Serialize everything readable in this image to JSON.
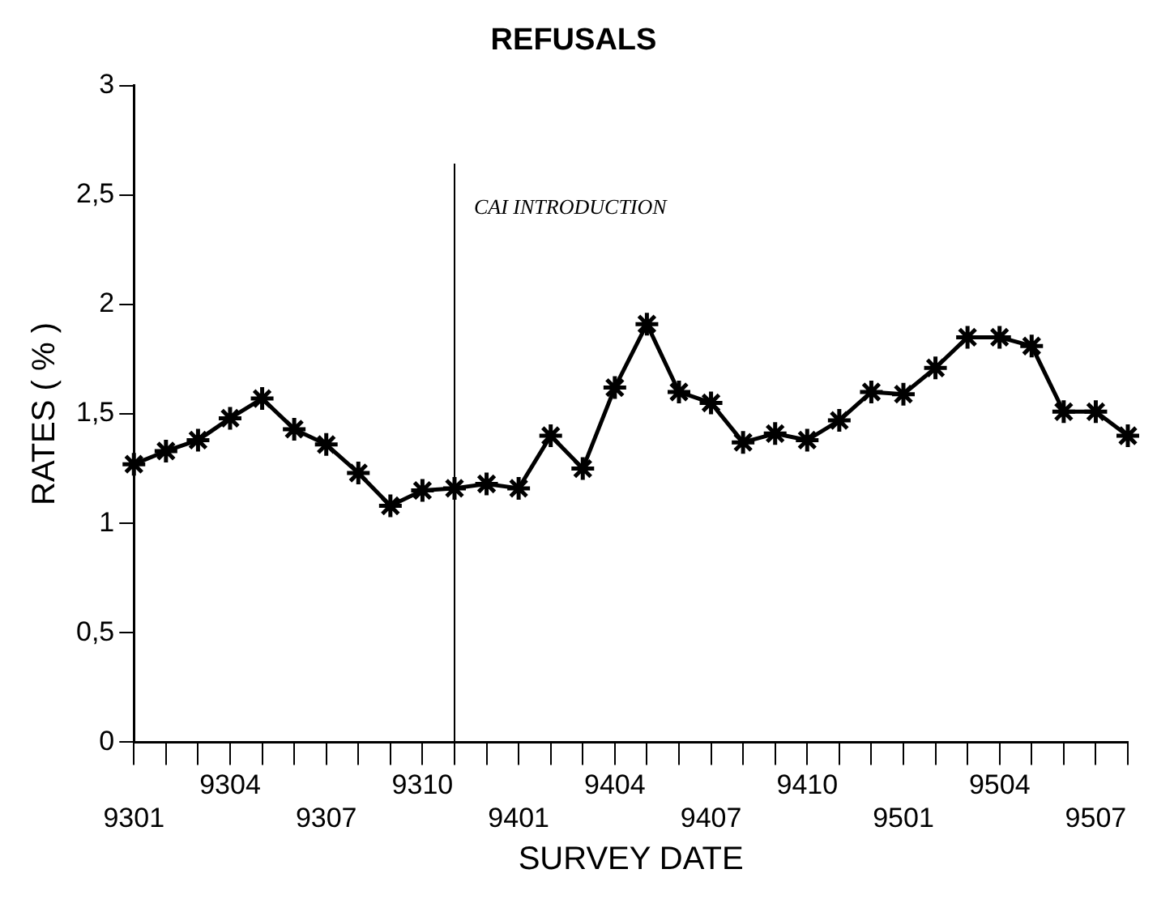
{
  "chart_data": {
    "type": "line",
    "title": "REFUSALS",
    "xlabel": "SURVEY DATE",
    "ylabel": "RATES ( % )",
    "categories": [
      "9301",
      null,
      null,
      "9304",
      null,
      null,
      "9307",
      null,
      null,
      "9310",
      null,
      null,
      "9401",
      null,
      null,
      "9404",
      null,
      null,
      "9407",
      null,
      null,
      "9410",
      null,
      null,
      "9501",
      null,
      null,
      "9504",
      null,
      null,
      "9507",
      null
    ],
    "series": [
      {
        "color": "#000000",
        "values": [
          1.27,
          1.33,
          1.38,
          1.48,
          1.57,
          1.43,
          1.36,
          1.23,
          1.08,
          1.15,
          1.16,
          1.18,
          1.16,
          1.4,
          1.25,
          1.62,
          1.91,
          1.6,
          1.55,
          1.37,
          1.41,
          1.38,
          1.47,
          1.6,
          1.59,
          1.71,
          1.85,
          1.85,
          1.81,
          1.51,
          1.51,
          1.4
        ]
      }
    ],
    "ylim": [
      0,
      3
    ],
    "yticks": [
      0,
      {
        "value": 0.5,
        "label": "0,5"
      },
      1,
      {
        "value": 1.5,
        "label": "1,5"
      },
      2,
      {
        "value": 2.5,
        "label": "2,5"
      },
      3
    ],
    "annotations": [
      "CAI INTRODUCTION"
    ],
    "marker": "cross",
    "line_style": "solid",
    "grid": false,
    "legend": false
  }
}
